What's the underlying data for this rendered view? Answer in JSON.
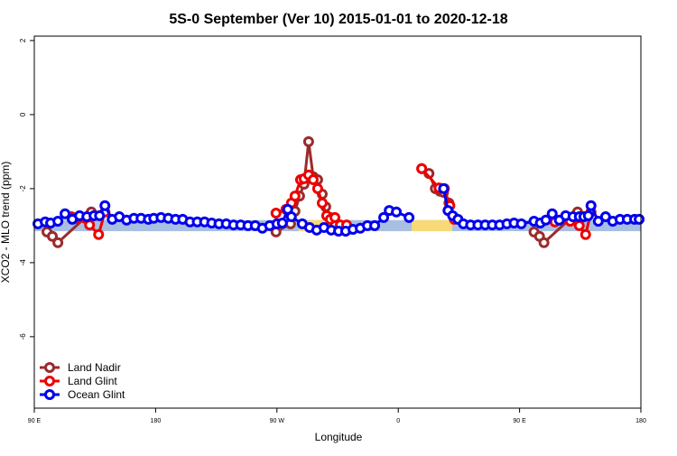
{
  "chart_data": {
    "type": "line",
    "title": "5S-0 September (Ver 10)   2015-01-01 to 2020-12-18",
    "x_label": "Longitude",
    "y_label": "XCO2 - MLO trend (ppm)",
    "xlim": [
      90,
      540
    ],
    "xticks": [
      {
        "value": 90,
        "label": "90 E"
      },
      {
        "value": 180,
        "label": "180"
      },
      {
        "value": 270,
        "label": "90 W"
      },
      {
        "value": 360,
        "label": "0"
      },
      {
        "value": 450,
        "label": "90 E"
      },
      {
        "value": 540,
        "label": "180"
      }
    ],
    "ylim": [
      -7.93,
      2.12
    ],
    "yticks": [
      2,
      0,
      -2,
      -4,
      -6
    ],
    "legend": "bottom-left",
    "band": {
      "lower": -3.15,
      "upper": -2.85,
      "color": "#a9bfe2",
      "highlight_color": "#f8d978",
      "highlights": [
        [
          286,
          316
        ],
        [
          370,
          400
        ]
      ]
    },
    "series": [
      {
        "name": "Land Nadir",
        "color": "#9b2b2b",
        "x": [
          99.4,
          103.4,
          107.5,
          132.3,
          200,
          269.3,
          280.1,
          283.4,
          286.8,
          290.1,
          293.5,
          296.9,
          300.2,
          303.6,
          306.2,
          309.6,
          313.0,
          340,
          377.4,
          382.8,
          387.5,
          390.9,
          393.6,
          397.6,
          401.0,
          430,
          460.7,
          464.8,
          468.1,
          493.0
        ],
        "values": [
          -3.17,
          -3.29,
          -3.46,
          -2.63,
          null,
          -3.17,
          -2.95,
          -2.61,
          -2.2,
          -1.88,
          -0.73,
          -1.68,
          -1.76,
          -2.15,
          -2.49,
          -2.78,
          -2.98,
          null,
          -1.46,
          -1.59,
          -2.0,
          -2.07,
          -2.1,
          -2.39,
          -2.76,
          null,
          -3.17,
          -3.29,
          -3.46,
          -2.63
        ]
      },
      {
        "name": "Land Glint",
        "color": "#ee0000",
        "x": [
          117.5,
          120.9,
          131.0,
          137.7,
          142.4,
          200,
          269.3,
          276.7,
          280.7,
          283.4,
          287.5,
          290.1,
          293.5,
          296.9,
          300.2,
          303.6,
          306.9,
          309.6,
          313.0,
          317.0,
          321.7,
          350,
          377.4,
          390.2,
          394.2,
          398.3,
          401.6,
          440,
          476.2,
          487.6,
          494.3,
          499.0,
          503.0
        ],
        "values": [
          -2.76,
          -2.8,
          -2.98,
          -3.24,
          -2.63,
          null,
          -2.66,
          -2.56,
          -2.39,
          -2.2,
          -1.76,
          -1.73,
          -1.63,
          -1.76,
          -2.0,
          -2.39,
          -2.73,
          -2.83,
          -2.78,
          -2.98,
          -2.98,
          null,
          -1.46,
          -1.98,
          -2.0,
          -2.46,
          -2.83,
          null,
          -2.9,
          -2.88,
          -3.0,
          -3.24,
          -2.63
        ]
      },
      {
        "name": "Ocean Glint",
        "color": "#0000ee",
        "x": [
          92.7,
          98.1,
          102.1,
          107.5,
          112.8,
          118.2,
          123.6,
          129.0,
          134.3,
          138.4,
          142.4,
          147.8,
          153.1,
          158.5,
          163.9,
          169.2,
          174.6,
          178.6,
          184.0,
          189.4,
          194.8,
          200.1,
          205.5,
          210.9,
          216.3,
          221.6,
          227.0,
          232.4,
          237.8,
          243.1,
          248.5,
          253.9,
          259.2,
          264.6,
          270.0,
          274.0,
          278.0,
          280.7,
          288.8,
          294.2,
          299.5,
          304.9,
          310.3,
          315.7,
          321.0,
          326.4,
          331.8,
          337.1,
          342.5,
          349.2,
          353.3,
          358.6,
          368.0,
          380,
          393.6,
          396.9,
          400.3,
          404.3,
          408.3,
          413.7,
          419.1,
          424.5,
          429.8,
          435.2,
          440.6,
          445.9,
          451.3,
          460.7,
          465.4,
          469.5,
          474.2,
          479.5,
          484.2,
          489.6,
          494.3,
          497.7,
          501.0,
          503.0,
          508.4,
          513.8,
          519.1,
          524.5,
          529.9,
          535.3,
          538.7
        ],
        "values": [
          -2.95,
          -2.9,
          -2.93,
          -2.88,
          -2.68,
          -2.83,
          -2.73,
          -2.76,
          -2.73,
          -2.73,
          -2.46,
          -2.83,
          -2.76,
          -2.85,
          -2.8,
          -2.8,
          -2.83,
          -2.8,
          -2.78,
          -2.8,
          -2.83,
          -2.83,
          -2.9,
          -2.9,
          -2.9,
          -2.93,
          -2.95,
          -2.95,
          -2.98,
          -2.98,
          -3.0,
          -3.0,
          -3.07,
          -3.0,
          -2.95,
          -2.93,
          -2.56,
          -2.76,
          -2.95,
          -3.05,
          -3.12,
          -3.05,
          -3.12,
          -3.15,
          -3.15,
          -3.1,
          -3.07,
          -3.0,
          -3.0,
          -2.78,
          -2.59,
          -2.63,
          -2.78,
          null,
          -2.0,
          -2.59,
          -2.73,
          -2.83,
          -2.95,
          -2.98,
          -2.98,
          -2.98,
          -2.98,
          -2.98,
          -2.95,
          -2.93,
          -2.95,
          -2.88,
          -2.93,
          -2.85,
          -2.68,
          -2.85,
          -2.73,
          -2.76,
          -2.76,
          -2.76,
          -2.73,
          -2.46,
          -2.88,
          -2.76,
          -2.88,
          -2.83,
          -2.83,
          -2.83,
          -2.83
        ]
      }
    ]
  }
}
